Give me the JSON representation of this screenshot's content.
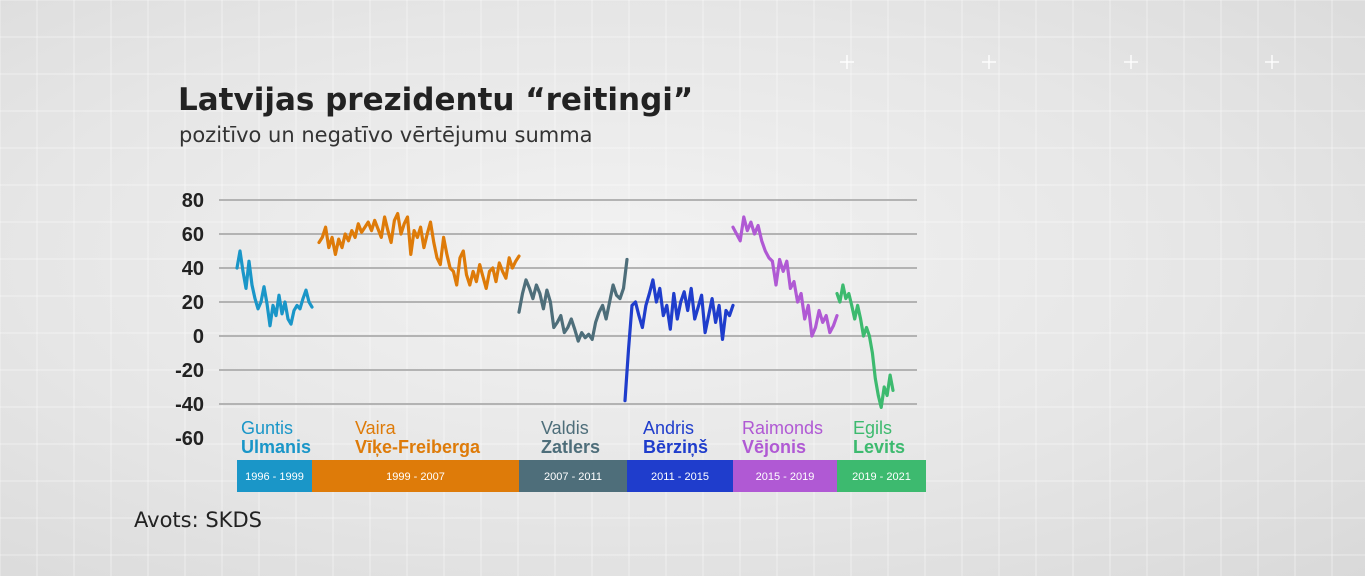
{
  "title": "Latvijas prezidentu “reitingi”",
  "subtitle": "pozitīvo un negatīvo vērtējumu summa",
  "source": "Avots: SKDS",
  "chart_data": {
    "type": "line",
    "y_ticks": [
      "80",
      "60",
      "40",
      "20",
      "0",
      "-20",
      "-40",
      "-60"
    ],
    "ylim": [
      -60,
      80
    ],
    "grid": true,
    "series": [
      {
        "first_name": "Guntis",
        "last_name": "Ulmanis",
        "period": "1996 - 1999",
        "color": "#1a96c8",
        "values": [
          40,
          50,
          38,
          28,
          44,
          30,
          22,
          16,
          20,
          29,
          19,
          6,
          18,
          12,
          24,
          13,
          20,
          10,
          7,
          15,
          18,
          16,
          22,
          27,
          20,
          17
        ]
      },
      {
        "first_name": "Vaira",
        "last_name": "Vīķe-Freiberga",
        "period": "1999 - 2007",
        "color": "#de7b09",
        "values": [
          55,
          58,
          64,
          52,
          58,
          48,
          57,
          52,
          60,
          56,
          62,
          58,
          66,
          61,
          64,
          67,
          62,
          68,
          63,
          58,
          70,
          62,
          55,
          68,
          72,
          60,
          66,
          70,
          48,
          62,
          58,
          64,
          52,
          60,
          67,
          55,
          46,
          42,
          58,
          48,
          40,
          38,
          30,
          46,
          50,
          36,
          30,
          38,
          32,
          42,
          35,
          28,
          38,
          40,
          32,
          43,
          38,
          34,
          46,
          40,
          44,
          47
        ]
      },
      {
        "first_name": "Valdis",
        "last_name": "Zatlers",
        "period": "2007 - 2011",
        "color": "#4e6e7a",
        "values": [
          14,
          25,
          33,
          28,
          22,
          30,
          25,
          16,
          27,
          20,
          5,
          8,
          12,
          2,
          5,
          10,
          4,
          -3,
          2,
          -1,
          1,
          -2,
          8,
          14,
          18,
          10,
          20,
          30,
          24,
          22,
          28,
          45
        ]
      },
      {
        "first_name": "Andris",
        "last_name": "Bērziņš",
        "period": "2011 - 2015",
        "color": "#1f3dcc",
        "values": [
          -38,
          -8,
          18,
          20,
          12,
          5,
          18,
          25,
          33,
          20,
          28,
          12,
          18,
          4,
          25,
          10,
          20,
          26,
          15,
          28,
          10,
          17,
          24,
          2,
          12,
          22,
          8,
          18,
          -2,
          15,
          12,
          18
        ]
      },
      {
        "first_name": "Raimonds",
        "last_name": "Vējonis",
        "period": "2015 - 2019",
        "color": "#b059d4",
        "values": [
          64,
          60,
          56,
          70,
          62,
          67,
          60,
          65,
          56,
          50,
          46,
          44,
          30,
          45,
          38,
          44,
          28,
          32,
          20,
          25,
          10,
          18,
          0,
          5,
          15,
          8,
          12,
          2,
          6,
          12
        ]
      },
      {
        "first_name": "Egils",
        "last_name": "Levits",
        "period": "2019 - 2021",
        "color": "#3dba6f",
        "values": [
          25,
          20,
          30,
          22,
          25,
          18,
          10,
          18,
          10,
          0,
          5,
          0,
          -10,
          -25,
          -35,
          -42,
          -30,
          -35,
          -23,
          -32
        ]
      }
    ]
  }
}
